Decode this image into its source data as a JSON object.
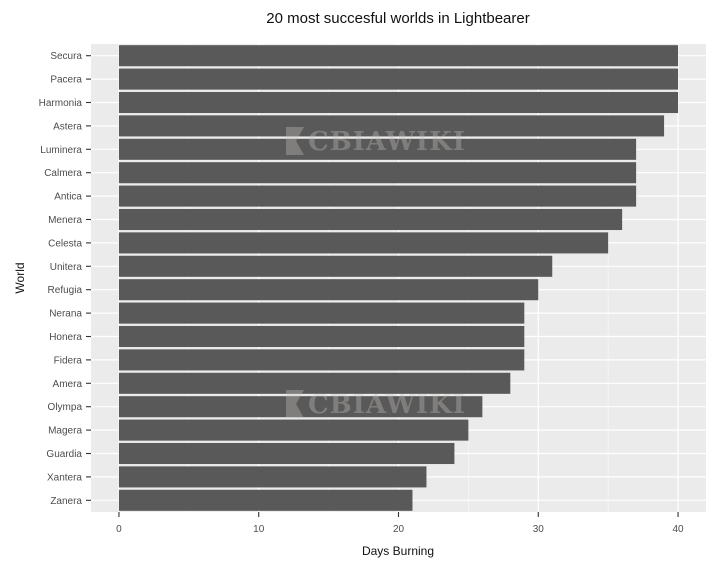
{
  "chart_data": {
    "type": "bar",
    "orientation": "horizontal",
    "title": "20 most succesful worlds in Lightbearer",
    "xlabel": "Days Burning",
    "ylabel": "World",
    "categories": [
      "Secura",
      "Pacera",
      "Harmonia",
      "Astera",
      "Luminera",
      "Calmera",
      "Antica",
      "Menera",
      "Celesta",
      "Unitera",
      "Refugia",
      "Nerana",
      "Honera",
      "Fidera",
      "Amera",
      "Olympa",
      "Magera",
      "Guardia",
      "Xantera",
      "Zanera"
    ],
    "values": [
      40,
      40,
      40,
      39,
      37,
      37,
      37,
      36,
      35,
      31,
      30,
      29,
      29,
      29,
      28,
      26,
      25,
      24,
      22,
      21
    ],
    "xlim": [
      -2,
      42
    ],
    "xticks": [
      0,
      10,
      20,
      30,
      40
    ],
    "grid": true,
    "bar_color": "#595959",
    "panel_color": "#ebebeb",
    "watermark": "CBIAWIKI"
  }
}
